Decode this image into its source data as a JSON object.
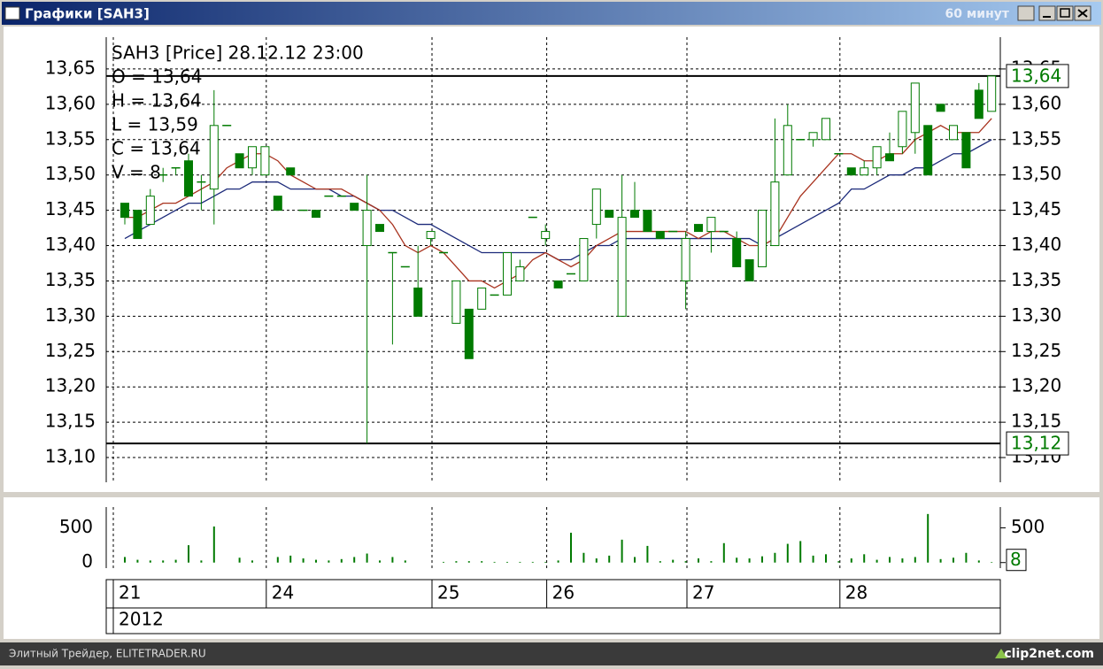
{
  "window": {
    "title": "Графики [SAH3]",
    "timeframe": "60 минут"
  },
  "chart_data": {
    "type": "candlestick",
    "info": [
      "SAH3 [Price] 28.12.12 23:00",
      "O = 13,64",
      "H = 13,64",
      "L = 13,59",
      "C = 13,64",
      "V = 8"
    ],
    "categories": [
      "21",
      null,
      null,
      null,
      null,
      null,
      null,
      null,
      null,
      null,
      null,
      null,
      "24",
      null,
      null,
      null,
      null,
      null,
      null,
      null,
      null,
      null,
      null,
      null,
      null,
      "25",
      null,
      null,
      null,
      null,
      null,
      null,
      null,
      null,
      "26",
      null,
      null,
      null,
      null,
      null,
      null,
      null,
      null,
      null,
      null,
      "27",
      null,
      null,
      null,
      null,
      null,
      null,
      null,
      null,
      null,
      null,
      null,
      "28",
      null,
      null,
      null,
      null,
      null,
      null,
      null,
      null,
      null,
      null,
      null
    ],
    "year": "2012",
    "open": [
      13.46,
      13.45,
      13.43,
      13.5,
      13.51,
      13.52,
      13.49,
      13.48,
      13.57,
      13.53,
      13.51,
      13.5,
      13.47,
      13.51,
      13.45,
      13.45,
      13.47,
      13.47,
      13.46,
      13.4,
      13.43,
      13.39,
      13.37,
      13.34,
      13.41,
      13.39,
      13.29,
      13.31,
      13.31,
      13.33,
      13.33,
      13.35,
      13.44,
      13.41,
      13.35,
      13.36,
      13.35,
      13.43,
      13.45,
      13.3,
      13.45,
      13.45,
      13.42,
      13.42,
      13.35,
      13.43,
      13.42,
      13.42,
      13.41,
      13.38,
      13.37,
      13.4,
      13.5,
      13.55,
      13.55,
      13.55,
      13.53,
      13.51,
      13.5,
      13.51,
      13.53,
      13.54,
      13.56,
      13.57,
      13.6,
      13.55,
      13.56,
      13.62,
      13.59
    ],
    "high": [
      13.46,
      13.45,
      13.48,
      13.51,
      13.51,
      13.53,
      13.5,
      13.62,
      13.57,
      13.53,
      13.54,
      13.54,
      13.47,
      13.51,
      13.45,
      13.45,
      13.47,
      13.47,
      13.46,
      13.5,
      13.43,
      13.39,
      13.37,
      13.4,
      13.42,
      13.39,
      13.35,
      13.31,
      13.34,
      13.33,
      13.39,
      13.38,
      13.44,
      13.43,
      13.35,
      13.36,
      13.41,
      13.48,
      13.45,
      13.5,
      13.49,
      13.45,
      13.42,
      13.42,
      13.42,
      13.43,
      13.44,
      13.42,
      13.42,
      13.38,
      13.45,
      13.58,
      13.6,
      13.55,
      13.56,
      13.58,
      13.53,
      13.51,
      13.52,
      13.54,
      13.56,
      13.59,
      13.63,
      13.57,
      13.6,
      13.57,
      13.56,
      13.63,
      13.64
    ],
    "low": [
      13.43,
      13.41,
      13.43,
      13.49,
      13.5,
      13.47,
      13.45,
      13.43,
      13.57,
      13.51,
      13.5,
      13.5,
      13.45,
      13.5,
      13.45,
      13.44,
      13.47,
      13.47,
      13.45,
      13.12,
      13.42,
      13.26,
      13.37,
      13.3,
      13.4,
      13.39,
      13.29,
      13.24,
      13.31,
      13.33,
      13.33,
      13.35,
      13.44,
      13.4,
      13.34,
      13.36,
      13.35,
      13.41,
      13.44,
      13.3,
      13.44,
      13.42,
      13.41,
      13.42,
      13.31,
      13.42,
      13.39,
      13.42,
      13.37,
      13.35,
      13.37,
      13.4,
      13.5,
      13.55,
      13.54,
      13.55,
      13.53,
      13.5,
      13.5,
      13.5,
      13.52,
      13.53,
      13.53,
      13.5,
      13.59,
      13.55,
      13.51,
      13.58,
      13.59
    ],
    "close": [
      13.44,
      13.41,
      13.47,
      13.5,
      13.51,
      13.47,
      13.49,
      13.57,
      13.57,
      13.51,
      13.54,
      13.54,
      13.45,
      13.5,
      13.45,
      13.44,
      13.47,
      13.47,
      13.45,
      13.45,
      13.42,
      13.39,
      13.37,
      13.3,
      13.42,
      13.39,
      13.35,
      13.24,
      13.34,
      13.33,
      13.39,
      13.37,
      13.44,
      13.42,
      13.34,
      13.36,
      13.41,
      13.48,
      13.44,
      13.44,
      13.44,
      13.42,
      13.41,
      13.42,
      13.41,
      13.42,
      13.44,
      13.42,
      13.37,
      13.35,
      13.45,
      13.49,
      13.57,
      13.55,
      13.56,
      13.58,
      13.53,
      13.5,
      13.51,
      13.54,
      13.52,
      13.59,
      13.63,
      13.5,
      13.59,
      13.57,
      13.51,
      13.58,
      13.64
    ],
    "color": "#007a00",
    "ylim": [
      13.065,
      13.695
    ],
    "yticks": [
      {
        "value": 13.1,
        "label": "13,10"
      },
      {
        "value": 13.15,
        "label": "13,15"
      },
      {
        "value": 13.2,
        "label": "13,20"
      },
      {
        "value": 13.25,
        "label": "13,25"
      },
      {
        "value": 13.3,
        "label": "13,30"
      },
      {
        "value": 13.35,
        "label": "13,35"
      },
      {
        "value": 13.4,
        "label": "13,40"
      },
      {
        "value": 13.45,
        "label": "13,45"
      },
      {
        "value": 13.5,
        "label": "13,50"
      },
      {
        "value": 13.55,
        "label": "13,55"
      },
      {
        "value": 13.6,
        "label": "13,60"
      },
      {
        "value": 13.65,
        "label": "13,65"
      }
    ],
    "hlines": [
      {
        "value": 13.64,
        "label": "13,64"
      },
      {
        "value": 13.12,
        "label": "13,12"
      }
    ],
    "grid": true,
    "lines": [
      {
        "color": "#1c2a7a",
        "values": [
          13.41,
          13.42,
          13.43,
          13.44,
          13.45,
          13.46,
          13.46,
          13.47,
          13.48,
          13.48,
          13.49,
          13.49,
          13.49,
          13.48,
          13.48,
          13.48,
          13.48,
          13.47,
          13.47,
          13.46,
          13.45,
          13.45,
          13.44,
          13.43,
          13.43,
          13.42,
          13.41,
          13.4,
          13.39,
          13.39,
          13.39,
          13.39,
          13.39,
          13.39,
          13.38,
          13.38,
          13.39,
          13.4,
          13.4,
          13.41,
          13.41,
          13.41,
          13.41,
          13.41,
          13.41,
          13.41,
          13.41,
          13.41,
          13.41,
          13.41,
          13.4,
          13.41,
          13.42,
          13.43,
          13.44,
          13.45,
          13.46,
          13.48,
          13.48,
          13.49,
          13.5,
          13.5,
          13.51,
          13.51,
          13.52,
          13.53,
          13.53,
          13.54,
          13.55
        ]
      },
      {
        "color": "#a8321e",
        "values": [
          13.44,
          13.44,
          13.45,
          13.46,
          13.46,
          13.47,
          13.48,
          13.49,
          13.51,
          13.52,
          13.53,
          13.53,
          13.52,
          13.5,
          13.49,
          13.48,
          13.48,
          13.48,
          13.47,
          13.46,
          13.45,
          13.43,
          13.4,
          13.39,
          13.4,
          13.39,
          13.37,
          13.35,
          13.35,
          13.34,
          13.35,
          13.36,
          13.38,
          13.39,
          13.38,
          13.37,
          13.38,
          13.4,
          13.41,
          13.42,
          13.42,
          13.42,
          13.42,
          13.42,
          13.42,
          13.41,
          13.42,
          13.42,
          13.41,
          13.4,
          13.4,
          13.41,
          13.44,
          13.47,
          13.49,
          13.51,
          13.53,
          13.53,
          13.52,
          13.52,
          13.53,
          13.53,
          13.55,
          13.56,
          13.57,
          13.56,
          13.56,
          13.56,
          13.58
        ]
      }
    ],
    "volume": {
      "values": [
        80,
        40,
        30,
        30,
        40,
        250,
        30,
        520,
        0,
        70,
        30,
        0,
        80,
        100,
        60,
        40,
        30,
        50,
        80,
        130,
        30,
        80,
        30,
        0,
        0,
        10,
        20,
        20,
        20,
        10,
        10,
        10,
        10,
        10,
        30,
        430,
        140,
        60,
        100,
        330,
        80,
        240,
        20,
        40,
        20,
        60,
        20,
        280,
        70,
        60,
        90,
        140,
        270,
        310,
        100,
        120,
        20,
        60,
        120,
        40,
        80,
        60,
        80,
        700,
        50,
        70,
        140,
        30,
        8
      ],
      "ylim": [
        -80,
        800
      ],
      "yticks": [
        0,
        500
      ]
    }
  },
  "footer": {
    "left": "Элитный Трейдер, ELITETRADER.RU",
    "right": "clip2net.com"
  }
}
